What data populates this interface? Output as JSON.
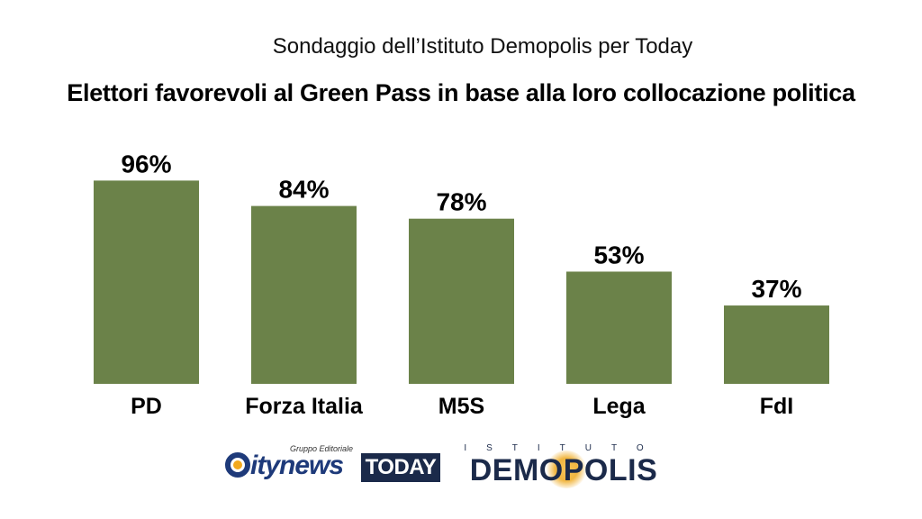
{
  "chart_data": {
    "type": "bar",
    "title": "Elettori favorevoli al Green Pass in base alla loro collocazione politica",
    "subtitle": "Sondaggio dell’Istituto Demopolis per Today",
    "categories": [
      "PD",
      "Forza Italia",
      "M5S",
      "Lega",
      "FdI"
    ],
    "values": [
      96,
      84,
      78,
      53,
      37
    ],
    "value_labels": [
      "96%",
      "84%",
      "78%",
      "53%",
      "37%"
    ],
    "ylim": [
      0,
      100
    ],
    "grid": false,
    "bar_color": "#6b8249"
  },
  "logos": {
    "citynews": {
      "tagline": "Gruppo Editoriale",
      "wordmark": "itynews"
    },
    "today": "TODAY",
    "demopolis": {
      "prefix": "ISTITUTO",
      "name": "DEMOPOLIS"
    }
  }
}
